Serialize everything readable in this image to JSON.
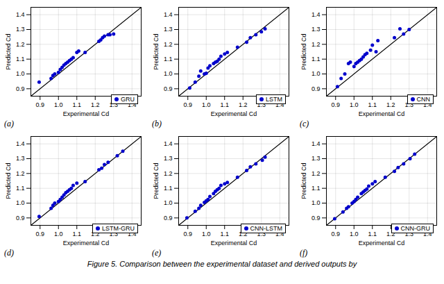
{
  "chart_data": [
    {
      "type": "scatter",
      "series": [
        {
          "name": "GRU",
          "color": "#0000CC",
          "x": [
            0.895,
            0.96,
            0.97,
            0.98,
            1.0,
            1.01,
            1.02,
            1.03,
            1.04,
            1.05,
            1.06,
            1.07,
            1.08,
            1.1,
            1.11,
            1.145,
            1.22,
            1.23,
            1.24,
            1.25,
            1.27,
            1.28,
            1.3
          ],
          "values": [
            0.945,
            0.97,
            0.99,
            1.0,
            1.01,
            1.03,
            1.045,
            1.06,
            1.07,
            1.08,
            1.09,
            1.1,
            1.11,
            1.145,
            1.155,
            1.145,
            1.22,
            1.23,
            1.245,
            1.255,
            1.265,
            1.265,
            1.27
          ]
        }
      ],
      "xlabel": "Experimental Cd",
      "ylabel": "Predicted Cd",
      "xlim": [
        0.85,
        1.45
      ],
      "ylim": [
        0.85,
        1.45
      ],
      "xticks": [
        0.9,
        {
          "value": 1.0,
          "label": "1.0"
        },
        1.1,
        1.2,
        1.3,
        1.4
      ],
      "yticks": [
        0.9,
        {
          "value": 1.0,
          "label": "1.0"
        },
        1.1,
        1.2,
        1.3,
        1.4
      ],
      "grid": true,
      "legend": "lower right",
      "annotation": "(a)"
    },
    {
      "type": "scatter",
      "series": [
        {
          "name": "LSTM",
          "color": "#0000CC",
          "x": [
            0.91,
            0.94,
            0.96,
            0.97,
            0.99,
            1.0,
            1.01,
            1.02,
            1.04,
            1.05,
            1.06,
            1.07,
            1.08,
            1.1,
            1.115,
            1.17,
            1.22,
            1.24,
            1.27,
            1.3,
            1.32
          ],
          "values": [
            0.905,
            0.945,
            0.985,
            1.02,
            1.0,
            1.005,
            1.04,
            1.055,
            1.07,
            1.08,
            1.085,
            1.1,
            1.12,
            1.135,
            1.145,
            1.18,
            1.215,
            1.245,
            1.265,
            1.285,
            1.305
          ]
        }
      ],
      "xlabel": "Experimental Cd",
      "ylabel": "Predicted Cd",
      "xlim": [
        0.85,
        1.45
      ],
      "ylim": [
        0.85,
        1.45
      ],
      "xticks": [
        0.9,
        {
          "value": 1.0,
          "label": "1.0"
        },
        1.1,
        1.2,
        1.3,
        1.4
      ],
      "yticks": [
        0.9,
        {
          "value": 1.0,
          "label": "1.0"
        },
        1.1,
        1.2,
        1.3,
        1.4
      ],
      "grid": true,
      "legend": "lower right",
      "annotation": "(b)"
    },
    {
      "type": "scatter",
      "series": [
        {
          "name": "CNN",
          "color": "#0000CC",
          "x": [
            0.91,
            0.93,
            0.95,
            0.97,
            0.98,
            1.0,
            1.01,
            1.02,
            1.03,
            1.04,
            1.05,
            1.06,
            1.07,
            1.09,
            1.1,
            1.12,
            1.13,
            1.22,
            1.25,
            1.27,
            1.3
          ],
          "values": [
            0.915,
            0.97,
            1.0,
            1.07,
            1.08,
            1.05,
            1.07,
            1.08,
            1.09,
            1.1,
            1.115,
            1.13,
            1.14,
            1.16,
            1.195,
            1.15,
            1.225,
            1.245,
            1.305,
            1.27,
            1.3
          ]
        }
      ],
      "xlabel": "Experimental Cd",
      "ylabel": "Predicted Cd",
      "xlim": [
        0.85,
        1.45
      ],
      "ylim": [
        0.85,
        1.45
      ],
      "xticks": [
        0.9,
        {
          "value": 1.0,
          "label": "1.0"
        },
        1.1,
        1.2,
        1.3,
        1.4
      ],
      "yticks": [
        0.9,
        {
          "value": 1.0,
          "label": "1.0"
        },
        1.1,
        1.2,
        1.3,
        1.4
      ],
      "grid": true,
      "legend": "lower right",
      "annotation": "(c)"
    },
    {
      "type": "scatter",
      "series": [
        {
          "name": "LSTM-GRU",
          "color": "#0000CC",
          "x": [
            0.895,
            0.96,
            0.97,
            0.98,
            1.0,
            1.01,
            1.02,
            1.03,
            1.04,
            1.05,
            1.06,
            1.07,
            1.08,
            1.1,
            1.145,
            1.22,
            1.235,
            1.25,
            1.27,
            1.32,
            1.35
          ],
          "values": [
            0.91,
            0.965,
            0.985,
            1.0,
            1.01,
            1.025,
            1.04,
            1.055,
            1.07,
            1.08,
            1.09,
            1.1,
            1.12,
            1.135,
            1.145,
            1.225,
            1.235,
            1.26,
            1.275,
            1.32,
            1.35
          ]
        }
      ],
      "xlabel": "Experimental Cd",
      "ylabel": "Predicted Cd",
      "xlim": [
        0.85,
        1.45
      ],
      "ylim": [
        0.85,
        1.45
      ],
      "xticks": [
        0.9,
        {
          "value": 1.0,
          "label": "1.0"
        },
        1.1,
        1.2,
        1.3,
        1.4
      ],
      "yticks": [
        0.9,
        {
          "value": 1.0,
          "label": "1.0"
        },
        1.1,
        1.2,
        1.3,
        1.4
      ],
      "grid": true,
      "legend": "lower right",
      "annotation": "(d)"
    },
    {
      "type": "scatter",
      "series": [
        {
          "name": "CNN-LSTM",
          "color": "#0000CC",
          "x": [
            0.895,
            0.94,
            0.96,
            0.97,
            0.99,
            1.0,
            1.01,
            1.02,
            1.04,
            1.05,
            1.06,
            1.07,
            1.08,
            1.1,
            1.115,
            1.17,
            1.22,
            1.24,
            1.27,
            1.305,
            1.32
          ],
          "values": [
            0.9,
            0.945,
            0.965,
            0.985,
            1.005,
            1.015,
            1.025,
            1.045,
            1.065,
            1.08,
            1.09,
            1.1,
            1.12,
            1.13,
            1.14,
            1.175,
            1.22,
            1.245,
            1.265,
            1.29,
            1.31
          ]
        }
      ],
      "xlabel": "Experimental Cd",
      "ylabel": "Predicted Cd",
      "xlim": [
        0.85,
        1.45
      ],
      "ylim": [
        0.85,
        1.45
      ],
      "xticks": [
        0.9,
        {
          "value": 1.0,
          "label": "1.0"
        },
        1.1,
        1.2,
        1.3,
        1.4
      ],
      "yticks": [
        0.9,
        {
          "value": 1.0,
          "label": "1.0"
        },
        1.1,
        1.2,
        1.3,
        1.4
      ],
      "grid": true,
      "legend": "lower right",
      "annotation": "(e)"
    },
    {
      "type": "scatter",
      "series": [
        {
          "name": "CNN-GRU",
          "color": "#0000CC",
          "x": [
            0.895,
            0.94,
            0.96,
            0.97,
            0.99,
            1.0,
            1.01,
            1.02,
            1.04,
            1.05,
            1.06,
            1.07,
            1.08,
            1.1,
            1.115,
            1.17,
            1.22,
            1.24,
            1.27,
            1.305,
            1.33
          ],
          "values": [
            0.895,
            0.94,
            0.965,
            0.975,
            1.0,
            1.01,
            1.025,
            1.04,
            1.065,
            1.075,
            1.085,
            1.095,
            1.115,
            1.13,
            1.145,
            1.175,
            1.215,
            1.24,
            1.265,
            1.3,
            1.33
          ]
        }
      ],
      "xlabel": "Experimental Cd",
      "ylabel": "Predicted Cd",
      "xlim": [
        0.85,
        1.45
      ],
      "ylim": [
        0.85,
        1.45
      ],
      "xticks": [
        0.9,
        {
          "value": 1.0,
          "label": "1.0"
        },
        1.1,
        1.2,
        1.3,
        1.4
      ],
      "yticks": [
        0.9,
        {
          "value": 1.0,
          "label": "1.0"
        },
        1.1,
        1.2,
        1.3,
        1.4
      ],
      "grid": true,
      "legend": "lower right",
      "annotation": "(f)"
    }
  ],
  "caption": "Figure 5. Comparison between the experimental dataset and derived outputs by"
}
